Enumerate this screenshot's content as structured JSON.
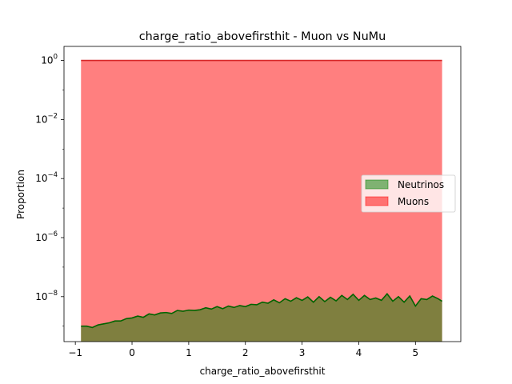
{
  "chart_data": {
    "type": "area",
    "title": "charge_ratio_abovefirsthit - Muon vs NuMu",
    "xlabel": "charge_ratio_abovefirsthit",
    "ylabel": "Proportion",
    "yscale": "log",
    "xlim": [
      -1.2,
      5.8
    ],
    "ylim": [
      3e-10,
      3
    ],
    "xticks": [
      -1,
      0,
      1,
      2,
      3,
      4,
      5
    ],
    "xtick_labels": [
      "−1",
      "0",
      "1",
      "2",
      "3",
      "4",
      "5"
    ],
    "yticks": [
      1e-08,
      1e-06,
      0.0001,
      0.01,
      1
    ],
    "ytick_labels": [
      {
        "base": "10",
        "exp": "−8"
      },
      {
        "base": "10",
        "exp": "−6"
      },
      {
        "base": "10",
        "exp": "−4"
      },
      {
        "base": "10",
        "exp": "−2"
      },
      {
        "base": "10",
        "exp": "0"
      }
    ],
    "grid": false,
    "legend_position": "center-right",
    "series": [
      {
        "name": "Neutrinos",
        "fill_color": "#008000",
        "line_color": "#006400",
        "x": [
          -0.9,
          -0.8,
          -0.7,
          -0.6,
          -0.5,
          -0.4,
          -0.3,
          -0.2,
          -0.1,
          0.0,
          0.1,
          0.2,
          0.3,
          0.4,
          0.5,
          0.6,
          0.7,
          0.8,
          0.9,
          1.0,
          1.1,
          1.2,
          1.3,
          1.4,
          1.5,
          1.6,
          1.7,
          1.8,
          1.9,
          2.0,
          2.1,
          2.2,
          2.3,
          2.4,
          2.5,
          2.6,
          2.7,
          2.8,
          2.9,
          3.0,
          3.1,
          3.2,
          3.3,
          3.4,
          3.5,
          3.6,
          3.7,
          3.8,
          3.9,
          4.0,
          4.1,
          4.2,
          4.3,
          4.4,
          4.5,
          4.6,
          4.7,
          4.8,
          4.9,
          5.0,
          5.1,
          5.2,
          5.3,
          5.4,
          5.47
        ],
        "values": [
          1e-09,
          1e-09,
          9e-10,
          1.1e-09,
          1.2e-09,
          1.3e-09,
          1.5e-09,
          1.5e-09,
          1.8e-09,
          1.9e-09,
          2.2e-09,
          2e-09,
          2.6e-09,
          2.4e-09,
          2.8e-09,
          2.9e-09,
          2.7e-09,
          3.4e-09,
          3.2e-09,
          3.5e-09,
          3.4e-09,
          3.6e-09,
          4.2e-09,
          3.8e-09,
          4.6e-09,
          3.9e-09,
          4.8e-09,
          4.3e-09,
          5e-09,
          4.6e-09,
          5.5e-09,
          5.3e-09,
          6.5e-09,
          6e-09,
          7.8e-09,
          6.2e-09,
          8.5e-09,
          7e-09,
          9.2e-09,
          7.5e-09,
          9.8e-09,
          6.5e-09,
          1e-08,
          6.8e-09,
          9.5e-09,
          7.2e-09,
          1.1e-08,
          8e-09,
          1.2e-08,
          7.5e-09,
          1.1e-08,
          8e-09,
          9e-09,
          7.5e-09,
          1.25e-08,
          7e-09,
          1e-08,
          6.5e-09,
          1.05e-08,
          4.8e-09,
          8.5e-09,
          8e-09,
          1.05e-08,
          8.5e-09,
          7e-09
        ]
      },
      {
        "name": "Muons",
        "fill_color": "#ff0000",
        "line_color": "#d62728",
        "x": [
          -0.9,
          5.47
        ],
        "values": [
          1.0,
          1.0
        ]
      }
    ]
  }
}
